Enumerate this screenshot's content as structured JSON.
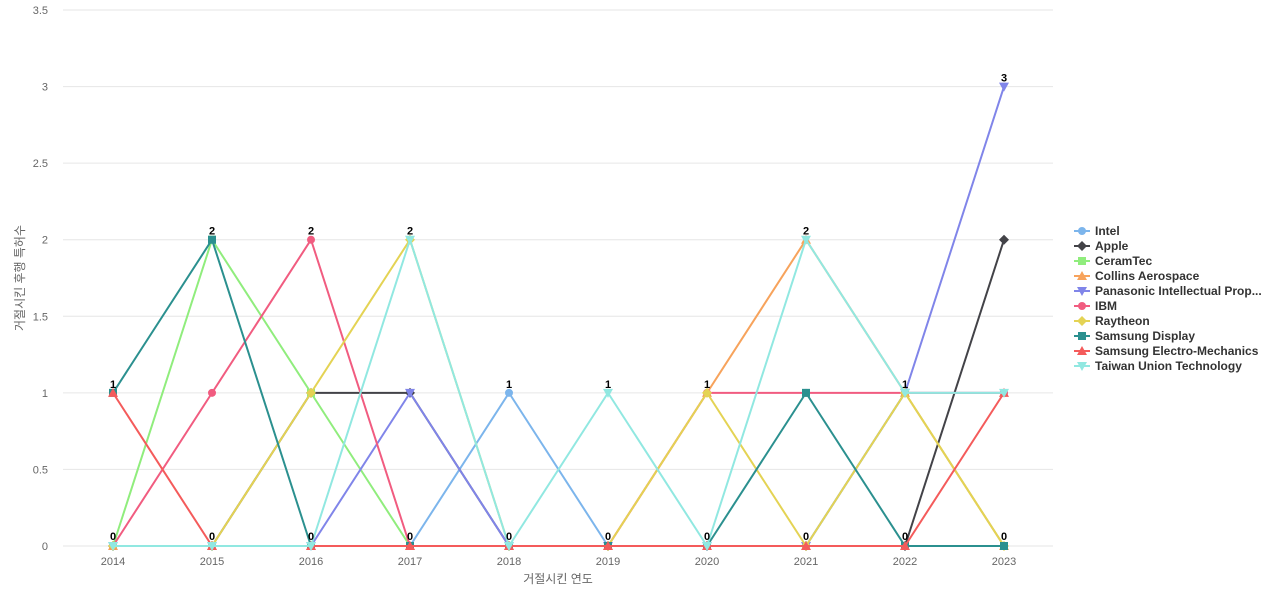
{
  "chart_data": {
    "type": "line",
    "title": "",
    "xlabel": "거절시킨 연도",
    "ylabel": "거절시킨 후행 특허수",
    "x": [
      "2014",
      "2015",
      "2016",
      "2017",
      "2018",
      "2019",
      "2020",
      "2021",
      "2022",
      "2023"
    ],
    "yticks": [
      "0",
      "0.5",
      "1",
      "1.5",
      "2",
      "2.5",
      "3",
      "3.5"
    ],
    "ylim": [
      0,
      3.5
    ],
    "grid": true,
    "legend_position": "right",
    "series": [
      {
        "name": "Intel",
        "color": "#7cb5ec",
        "marker": "circle",
        "values": [
          0,
          0,
          0,
          0,
          1,
          0,
          0,
          0,
          1,
          1
        ]
      },
      {
        "name": "Apple",
        "color": "#434348",
        "marker": "diamond",
        "values": [
          0,
          0,
          1,
          1,
          0,
          0,
          0,
          0,
          0,
          2
        ]
      },
      {
        "name": "CeramTec",
        "color": "#90ed7d",
        "marker": "square",
        "values": [
          0,
          2,
          1,
          0,
          0,
          0,
          0,
          0,
          1,
          0
        ]
      },
      {
        "name": "Collins Aerospace",
        "color": "#f7a35c",
        "marker": "triangle",
        "values": [
          0,
          0,
          0,
          0,
          0,
          0,
          1,
          2,
          1,
          0
        ]
      },
      {
        "name": "Panasonic Intellectual Prop...",
        "color": "#8085e9",
        "marker": "triangle-down",
        "values": [
          0,
          0,
          0,
          1,
          0,
          0,
          0,
          0,
          1,
          3
        ]
      },
      {
        "name": "IBM",
        "color": "#f15c80",
        "marker": "circle",
        "values": [
          0,
          1,
          2,
          0,
          0,
          0,
          1,
          1,
          1,
          1
        ]
      },
      {
        "name": "Raytheon",
        "color": "#e4d354",
        "marker": "diamond",
        "values": [
          0,
          0,
          1,
          2,
          0,
          0,
          1,
          0,
          1,
          0
        ]
      },
      {
        "name": "Samsung Display",
        "color": "#2b908f",
        "marker": "square",
        "values": [
          1,
          2,
          0,
          0,
          0,
          0,
          0,
          1,
          0,
          0
        ]
      },
      {
        "name": "Samsung Electro-Mechanics",
        "color": "#f45b5b",
        "marker": "triangle",
        "values": [
          1,
          0,
          0,
          0,
          0,
          0,
          0,
          0,
          0,
          1
        ]
      },
      {
        "name": "Taiwan Union Technology",
        "color": "#91e8e1",
        "marker": "triangle-down",
        "values": [
          0,
          0,
          0,
          2,
          0,
          1,
          0,
          2,
          1,
          1
        ]
      }
    ],
    "max_labels": [
      "1",
      "2",
      "2",
      "2",
      "1",
      "1",
      "1",
      "2",
      "1",
      "3"
    ],
    "min_labels": [
      "0",
      "0",
      "0",
      "0",
      "0",
      "0",
      "0",
      "0",
      "0",
      "0"
    ]
  }
}
